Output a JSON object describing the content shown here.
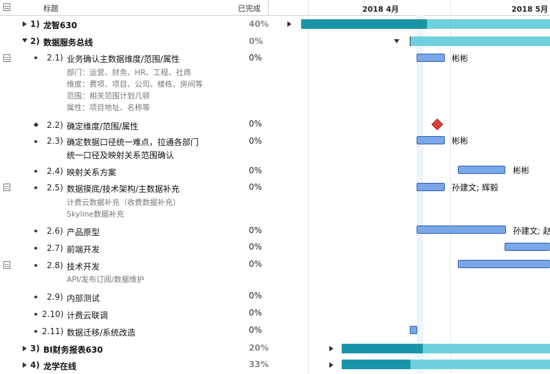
{
  "header": {
    "title_col": "标题",
    "complete_col": "已完成",
    "months": [
      "2018 4月",
      "2018 5月"
    ]
  },
  "rows": [
    {
      "num": "1)",
      "title": "龙智630",
      "pct": "40%",
      "bold": true
    },
    {
      "num": "2)",
      "title": "数据服务总线",
      "pct": "0%",
      "bold": true
    },
    {
      "num": "2.1)",
      "title": "业务确认主数据维度/范围/属性",
      "pct": "0%",
      "resource": "彬彬",
      "notes": [
        "部门：运营、财务、HR、工程、社商",
        "维度：费项、项目、公司、楼栋、房间等",
        "范围：相关范围计划几顿",
        "属性：项目地址、名称等"
      ]
    },
    {
      "num": "2.2)",
      "title": "确定维度/范围/属性",
      "pct": "0%"
    },
    {
      "num": "2.3)",
      "title": "确定数据口径统一难点，拉通各部门",
      "title2": "统一口径及映射关系范围确认",
      "pct": "0%",
      "resource": "彬彬"
    },
    {
      "num": "2.4)",
      "title": "映射关系方案",
      "pct": "0%",
      "resource": "彬彬"
    },
    {
      "num": "2.5)",
      "title": "数据摸底/技术架构/主数据补充",
      "pct": "0%",
      "resource": "孙建文; 辉毅",
      "notes": [
        "计费云数据补充（收费数据补充）",
        "Skyline数据补充"
      ]
    },
    {
      "num": "2.6)",
      "title": "产品原型",
      "pct": "0%",
      "resource": "孙建文; 赵"
    },
    {
      "num": "2.7)",
      "title": "前端开发",
      "pct": "0%"
    },
    {
      "num": "2.8)",
      "title": "技术开发",
      "pct": "0%",
      "notes": [
        "API/发布订阅/数据维护"
      ]
    },
    {
      "num": "2.9)",
      "title": "内部测试",
      "pct": "0%"
    },
    {
      "num": "2.10)",
      "title": "计费云联调",
      "pct": "0%"
    },
    {
      "num": "2.11)",
      "title": "数据迁移/系统改造",
      "pct": "0%"
    },
    {
      "num": "3)",
      "title": "BI财务报表630",
      "pct": "20%",
      "bold": true
    },
    {
      "num": "4)",
      "title": "龙学在线",
      "pct": "33%",
      "bold": true
    }
  ],
  "icons": {
    "header": "notes-column-icon",
    "note": "note-icon",
    "expand": "disclosure-triangle-icon",
    "milestone": "milestone-diamond-icon"
  },
  "colors": {
    "task_bar": "#7aa6ea",
    "task_bar_border": "#2b5fa8",
    "summary_done": "#1a95a8",
    "summary_remaining": "#6fd0dd",
    "milestone": "#e23d3d",
    "today_band": "#eef4fc"
  }
}
